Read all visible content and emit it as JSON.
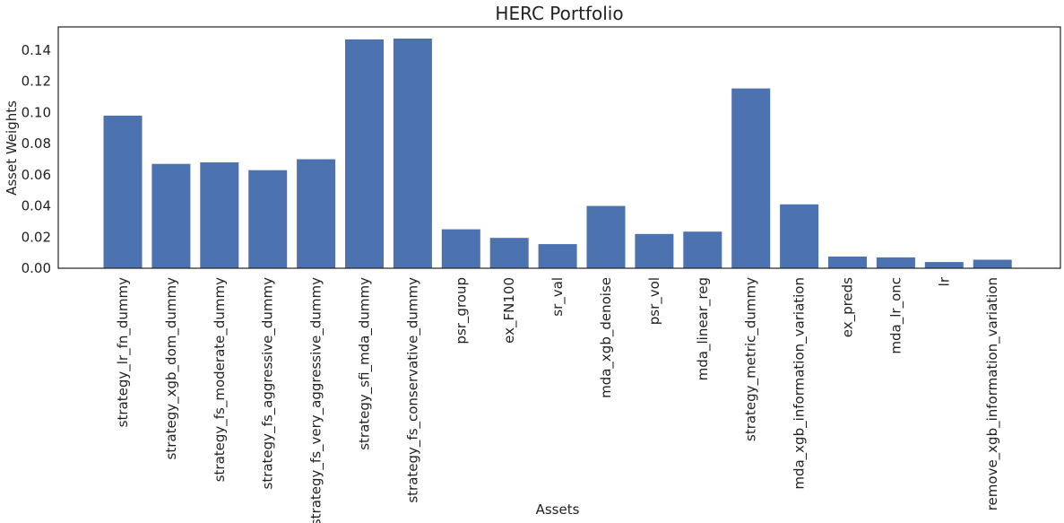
{
  "chart_data": {
    "type": "bar",
    "title": "HERC Portfolio",
    "xlabel": "Assets",
    "ylabel": "Asset Weights",
    "ylim": [
      0,
      0.155
    ],
    "yticks": [
      "0.00",
      "0.02",
      "0.04",
      "0.06",
      "0.08",
      "0.10",
      "0.12",
      "0.14"
    ],
    "ytick_values": [
      0,
      0.02,
      0.04,
      0.06,
      0.08,
      0.1,
      0.12,
      0.14
    ],
    "grid": false,
    "bar_color": "#4c72b0",
    "categories": [
      "strategy_lr_fn_dummy",
      "strategy_xgb_dom_dummy",
      "strategy_fs_moderate_dummy",
      "strategy_fs_aggressive_dummy",
      "strategy_fs_very_aggressive_dummy",
      "strategy_sfi_mda_dummy",
      "strategy_fs_conservative_dummy",
      "psr_group",
      "ex_FN100",
      "sr_val",
      "mda_xgb_denoise",
      "psr_vol",
      "mda_linear_reg",
      "strategy_metric_dummy",
      "mda_xgb_information_variation",
      "ex_preds",
      "mda_lr_onc",
      "lr",
      "remove_xgb_information_variation"
    ],
    "values": [
      0.098,
      0.067,
      0.068,
      0.063,
      0.07,
      0.147,
      0.1475,
      0.025,
      0.0195,
      0.0155,
      0.04,
      0.022,
      0.0235,
      0.1155,
      0.041,
      0.0075,
      0.007,
      0.004,
      0.0055
    ]
  }
}
